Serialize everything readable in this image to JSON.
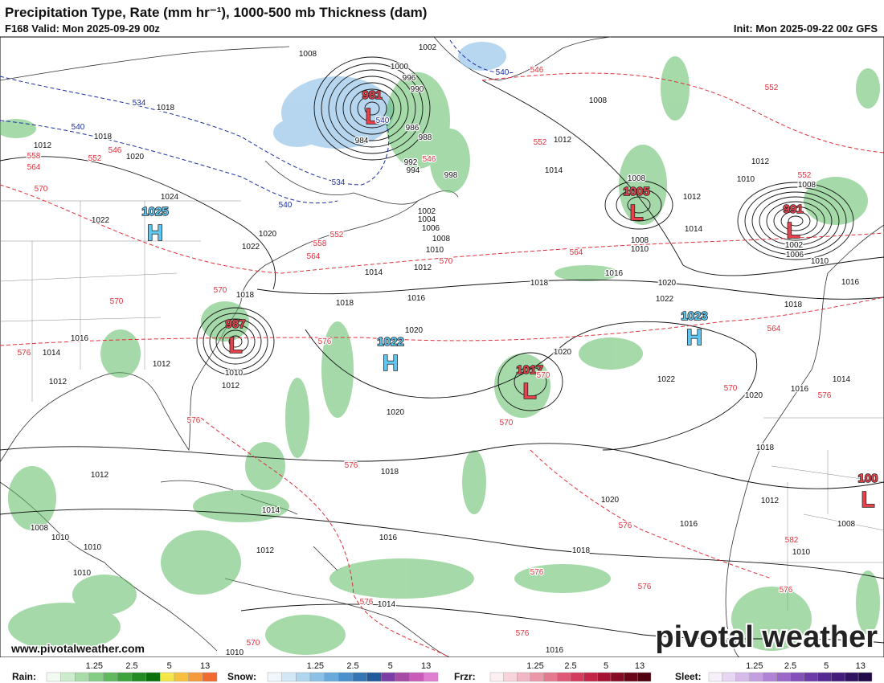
{
  "header": {
    "title": "Precipitation Type, Rate (mm hr⁻¹), 1000-500 mb Thickness (dam)",
    "valid": "F168 Valid: Mon 2025-09-29 00z",
    "init": "Init: Mon 2025-09-22 00z GFS"
  },
  "centers": [
    {
      "letter": "L",
      "value": "981"
    },
    {
      "letter": "L",
      "value": "987"
    },
    {
      "letter": "L",
      "value": "1005"
    },
    {
      "letter": "L",
      "value": "991"
    },
    {
      "letter": "L",
      "value": "1017"
    },
    {
      "letter": "L",
      "value": "100"
    },
    {
      "letter": "H",
      "value": "1025"
    },
    {
      "letter": "H",
      "value": "1022"
    },
    {
      "letter": "H",
      "value": "1023"
    }
  ],
  "isobar_labels": [
    "1008",
    "1000",
    "996",
    "990",
    "986",
    "988",
    "984",
    "992",
    "994",
    "998",
    "1002",
    "1004",
    "1006",
    "1008",
    "1010",
    "1012",
    "1014",
    "1016",
    "1018",
    "1020",
    "1018",
    "1020",
    "1022",
    "1024",
    "1022",
    "1018",
    "1018",
    "1020",
    "1012",
    "1014",
    "1016",
    "1012",
    "1012",
    "1010",
    "1012",
    "1008",
    "1012",
    "1014",
    "1008",
    "1012",
    "1014",
    "1008",
    "1010",
    "1016",
    "1018",
    "1020",
    "1022",
    "1018",
    "1012",
    "1010",
    "1008",
    "1002",
    "1006",
    "1010",
    "1016",
    "1020",
    "1022",
    "1020",
    "1014",
    "1016",
    "1018",
    "1012",
    "1008",
    "1010",
    "1020",
    "1018",
    "1012",
    "1008",
    "1010",
    "1010",
    "1010",
    "1014",
    "1012",
    "1016",
    "1020",
    "1016",
    "1018",
    "1014",
    "1016",
    "1016",
    "1010",
    "1002"
  ],
  "thickness_labels": [
    "546",
    "552",
    "552",
    "552",
    "546",
    "546",
    "552",
    "558",
    "564",
    "570",
    "558",
    "552",
    "564",
    "570",
    "564",
    "570",
    "570",
    "576",
    "576",
    "564",
    "570",
    "570",
    "570",
    "576",
    "576",
    "576",
    "576",
    "576",
    "576",
    "576",
    "582",
    "576",
    "570",
    "576"
  ],
  "cold_thickness_labels": [
    "534",
    "540",
    "540",
    "534",
    "540",
    "540"
  ],
  "url": "www.pivotalweather.com",
  "brand": "pivotal weather",
  "legend": [
    {
      "name": "Rain:",
      "ticks": [
        "1.25",
        "2.5",
        "5",
        "13"
      ]
    },
    {
      "name": "Snow:",
      "ticks": [
        "1.25",
        "2.5",
        "5",
        "13"
      ]
    },
    {
      "name": "Frzr:",
      "ticks": [
        "1.25",
        "2.5",
        "5",
        "13"
      ]
    },
    {
      "name": "Sleet:",
      "ticks": [
        "1.25",
        "2.5",
        "5",
        "13"
      ]
    }
  ]
}
